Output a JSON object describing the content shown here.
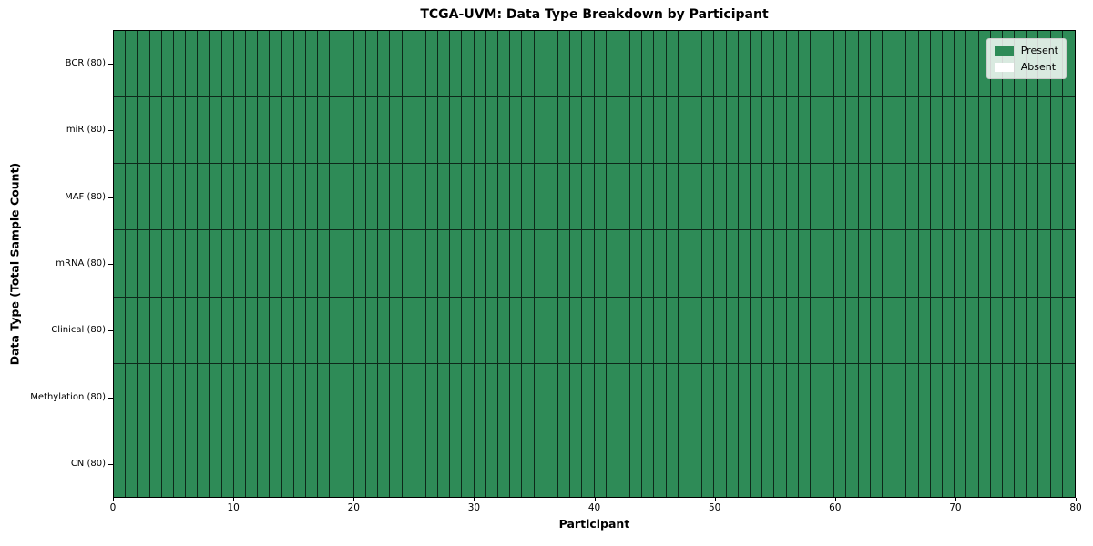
{
  "chart_data": {
    "type": "heatmap",
    "title": "TCGA-UVM: Data Type Breakdown by Participant",
    "xlabel": "Participant",
    "ylabel": "Data Type (Total Sample Count)",
    "rows": [
      "BCR (80)",
      "miR (80)",
      "MAF (80)",
      "mRNA (80)",
      "Clinical (80)",
      "Methylation (80)",
      "CN (80)"
    ],
    "n_participants": 80,
    "x_range": [
      0,
      80
    ],
    "x_ticks": [
      0,
      10,
      20,
      30,
      40,
      50,
      60,
      70,
      80
    ],
    "row_present_counts": [
      80,
      80,
      80,
      80,
      80,
      80,
      80
    ],
    "absent_cells": [],
    "grid": true,
    "legend": {
      "position": "upper-right",
      "entries": [
        {
          "label": "Present",
          "color": "#2e8b57"
        },
        {
          "label": "Absent",
          "color": "#ffffff"
        }
      ]
    },
    "colors": {
      "present": "#2e8b57",
      "absent": "#ffffff",
      "cell_border": "#1c2f24",
      "axis": "#000000",
      "background": "#ffffff"
    }
  }
}
